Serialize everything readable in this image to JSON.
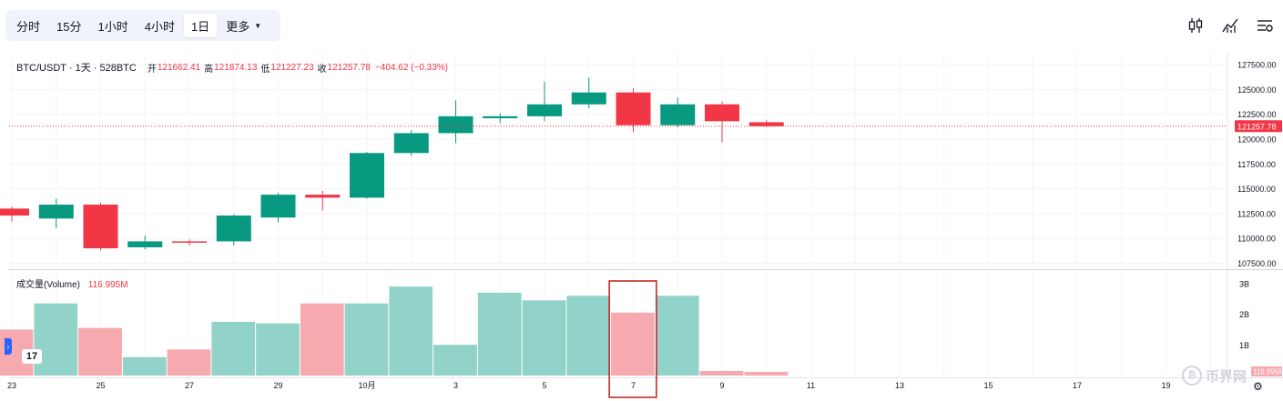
{
  "toolbar": {
    "timeframes": [
      "分时",
      "15分",
      "1小时",
      "4小时",
      "1日"
    ],
    "more_label": "更多"
  },
  "top_icons": [
    "candlestick-icon",
    "indicators-icon",
    "settings-list-icon"
  ],
  "legend": {
    "symbol": "BTC/USDT · 1天 · 528BTC",
    "open_label": "开",
    "open_value": "121662.41",
    "high_label": "高",
    "high_value": "121874.13",
    "low_label": "低",
    "low_value": "121227.23",
    "close_label": "收",
    "close_value": "121257.78",
    "change": "−404.62 (−0.33%)"
  },
  "volume_legend": {
    "label": "成交量(Volume)",
    "value": "116.995M"
  },
  "price_badge": "121257.78",
  "volume_badge": "116.995M",
  "tv_logo": "17",
  "watermark": "币界网",
  "colors": {
    "up": "#089981",
    "down": "#f23645",
    "up_vol": "#92d3c9",
    "down_vol": "#f7a9b0",
    "highlight": "#c62828"
  },
  "chart_data": {
    "type": "candlestick",
    "price_axis": {
      "ticks": [
        107500,
        110000,
        112500,
        115000,
        117500,
        120000,
        122500,
        125000,
        127500
      ],
      "range": [
        106900,
        128700
      ]
    },
    "volume_axis": {
      "ticks": [
        "1B",
        "2B",
        "3B"
      ],
      "tick_values": [
        1,
        2,
        3
      ],
      "max": 3.2
    },
    "x_labels": [
      "23",
      "25",
      "27",
      "29",
      "10月",
      "3",
      "5",
      "7",
      "9",
      "11",
      "13",
      "15",
      "17",
      "19"
    ],
    "candles": [
      {
        "o": 113000,
        "h": 113200,
        "l": 111700,
        "c": 112300
      },
      {
        "o": 112000,
        "h": 114000,
        "l": 111000,
        "c": 113400
      },
      {
        "o": 113400,
        "h": 113600,
        "l": 108800,
        "c": 109000
      },
      {
        "o": 109100,
        "h": 110300,
        "l": 108900,
        "c": 109700
      },
      {
        "o": 109700,
        "h": 109900,
        "l": 109300,
        "c": 109600
      },
      {
        "o": 109700,
        "h": 112400,
        "l": 109300,
        "c": 112300
      },
      {
        "o": 112100,
        "h": 114600,
        "l": 111600,
        "c": 114400
      },
      {
        "o": 114400,
        "h": 114800,
        "l": 112800,
        "c": 114100
      },
      {
        "o": 114100,
        "h": 118700,
        "l": 114000,
        "c": 118600
      },
      {
        "o": 118600,
        "h": 120900,
        "l": 118300,
        "c": 120600
      },
      {
        "o": 120600,
        "h": 123900,
        "l": 119600,
        "c": 122300
      },
      {
        "o": 122100,
        "h": 122600,
        "l": 121600,
        "c": 122300
      },
      {
        "o": 122300,
        "h": 125800,
        "l": 121800,
        "c": 123500
      },
      {
        "o": 123500,
        "h": 126200,
        "l": 123100,
        "c": 124700
      },
      {
        "o": 124700,
        "h": 125100,
        "l": 120700,
        "c": 121400
      },
      {
        "o": 121400,
        "h": 124200,
        "l": 121200,
        "c": 123500
      },
      {
        "o": 123500,
        "h": 123800,
        "l": 119700,
        "c": 121800
      },
      {
        "o": 121700,
        "h": 121900,
        "l": 121200,
        "c": 121300
      }
    ],
    "volume_values": [
      1.5,
      2.35,
      1.55,
      0.6,
      0.85,
      1.75,
      1.7,
      2.35,
      2.35,
      2.9,
      1.0,
      2.7,
      2.45,
      2.6,
      2.05,
      2.6,
      0.15,
      0.12
    ],
    "highlighted_index": 14
  }
}
